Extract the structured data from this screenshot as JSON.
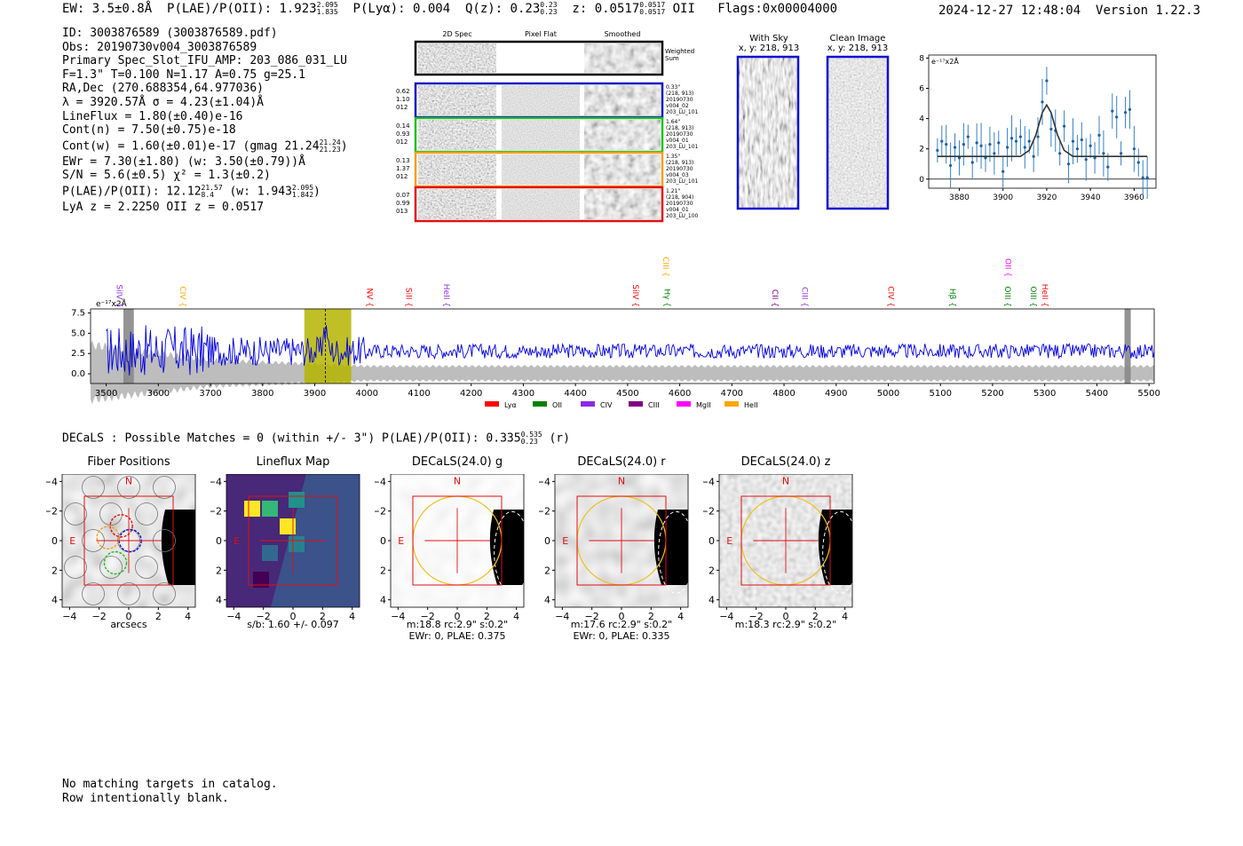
{
  "header": {
    "ew": "EW: 3.5±0.8Å",
    "plae_label": "P(LAE)/P(OII): 1.923",
    "plae_hi": "2.095",
    "plae_lo": "1.835",
    "plya": "P(Lyα): 0.004",
    "qz_label": "Q(z): 0.23",
    "qz_hi": "0.23",
    "qz_lo": "0.23",
    "z_label": "z: 0.0517",
    "z_hi": "0.0517",
    "z_lo": "0.0517",
    "z_line": "OII",
    "flags": "Flags:0x00004000",
    "datetime": "2024-12-27 12:48:04",
    "version": "Version 1.22.3"
  },
  "info": {
    "id": "ID: 3003876589 (3003876589.pdf)",
    "obs": "Obs: 20190730v004_3003876589",
    "slot": "Primary Spec_Slot_IFU_AMP: 203_086_031_LU",
    "params": "F=1.3\"  T=0.100  N=1.17  A=0.75  g=25.1",
    "radec": "RA,Dec (270.688354,64.977036)",
    "lambda": "λ = 3920.57Å  σ = 4.23(±1.04)Å",
    "lineflux": "LineFlux = 1.80(±0.40)e-16",
    "contn": "Cont(n) = 7.50(±0.75)e-18",
    "contw": "Cont(w) = 1.60(±0.01)e-17 (gmag 21.24",
    "contw_hi": "21.24",
    "contw_lo": "21.23",
    "contw_end": ")",
    "ewr": "EWr = 7.30(±1.80) (w: 3.50(±0.79))Å",
    "sn": "S/N = 5.6(±0.5)  χ² = 1.3(±0.2)",
    "plae": "P(LAE)/P(OII): 12.12",
    "plae_hi": "21.57",
    "plae_lo": "8.4",
    "plae_w": "(w: 1.943",
    "plae_w_hi": "2.095",
    "plae_w_lo": "1.842",
    "plae_w_end": ")",
    "lya_oii": "LyA z = 2.2250   OII z = 0.0517"
  },
  "cutouts": {
    "col_labels": [
      "2D Spec",
      "Pixel Flat",
      "Smoothed"
    ],
    "weighted_sum": "Weighted Sum",
    "rows": [
      {
        "left": [
          "0.62",
          "1.10",
          "012"
        ],
        "right": [
          "0.33\"",
          "(218, 913)",
          "20190730",
          "v004_02",
          "203_LU_101"
        ],
        "color": "#1010c0"
      },
      {
        "left": [
          "0.14",
          "0.93",
          "012"
        ],
        "right": [
          "1.64\"",
          "(218, 913)",
          "20190730",
          "v004_01",
          "203_LU_101"
        ],
        "color": "#20c020"
      },
      {
        "left": [
          "0.13",
          "1.37",
          "012"
        ],
        "right": [
          "1.35\"",
          "(218, 913)",
          "20190730",
          "v004_03",
          "203_LU_101"
        ],
        "color": "#f0a020"
      },
      {
        "left": [
          "0.07",
          "0.99",
          "013"
        ],
        "right": [
          "1.21\"",
          "(218, 904)",
          "20190730",
          "v004_01",
          "203_LU_100"
        ],
        "color": "#e01010"
      }
    ]
  },
  "sky_panels": {
    "with_sky": "With Sky",
    "clean": "Clean Image",
    "coords": "x, y: 218, 913"
  },
  "fit_plot": {
    "unit": "e⁻¹⁷x2Å",
    "chart_data": {
      "type": "scatter",
      "x_ticks": [
        3880,
        3900,
        3920,
        3940,
        3960
      ],
      "y_ticks": [
        0,
        2,
        4,
        6,
        8
      ],
      "xlim": [
        3866,
        3970
      ],
      "ylim": [
        -0.6,
        8.2
      ],
      "points_x": [
        3870,
        3872,
        3874,
        3876,
        3878,
        3880,
        3882,
        3884,
        3886,
        3888,
        3890,
        3892,
        3894,
        3896,
        3898,
        3900,
        3902,
        3904,
        3906,
        3908,
        3910,
        3912,
        3914,
        3916,
        3918,
        3920,
        3922,
        3924,
        3926,
        3928,
        3930,
        3932,
        3934,
        3936,
        3938,
        3940,
        3942,
        3944,
        3946,
        3948,
        3950,
        3952,
        3954,
        3956,
        3958,
        3960,
        3962,
        3964,
        3966
      ],
      "points_y": [
        1.9,
        2.5,
        2.3,
        0.9,
        2.1,
        1.4,
        2.3,
        2.8,
        1.1,
        2.4,
        2.2,
        1.4,
        2.3,
        1.7,
        2.4,
        0.5,
        2.1,
        2.7,
        2.5,
        2.8,
        2.1,
        2.5,
        1.5,
        2.8,
        5.1,
        6.5,
        3.3,
        3.2,
        1.7,
        3.5,
        1.0,
        2.5,
        2.0,
        2.6,
        1.3,
        2.2,
        1.4,
        2.9,
        1.7,
        0.8,
        4.5,
        4.1,
        1.7,
        4.4,
        4.6,
        2.0,
        1.1,
        0.1,
        0.1
      ],
      "fit_x": [
        3870,
        3908,
        3912,
        3915,
        3918,
        3920,
        3922,
        3925,
        3928,
        3932,
        3966
      ],
      "fit_y": [
        1.5,
        1.5,
        1.9,
        2.9,
        4.4,
        4.9,
        4.4,
        2.9,
        1.9,
        1.5,
        1.5
      ]
    }
  },
  "spectrum": {
    "unit": "e⁻¹⁷x2Å",
    "legend": [
      {
        "label": "Lyα",
        "color": "#ff0000"
      },
      {
        "label": "OII",
        "color": "#008000"
      },
      {
        "label": "CIV",
        "color": "#8a2be2"
      },
      {
        "label": "CIII",
        "color": "#800080"
      },
      {
        "label": "MgII",
        "color": "#ff00ff"
      },
      {
        "label": "HeII",
        "color": "#ffa500"
      }
    ],
    "chart_data": {
      "type": "line",
      "xlim": [
        3470,
        5510
      ],
      "ylim": [
        -1.2,
        8.0
      ],
      "x_ticks": [
        3500,
        3600,
        3700,
        3800,
        3900,
        4000,
        4100,
        4200,
        4300,
        4400,
        4500,
        4600,
        4700,
        4800,
        4900,
        5000,
        5100,
        5200,
        5300,
        5400,
        5500
      ],
      "y_ticks": [
        "0.0",
        "2.5",
        "5.0",
        "7.5"
      ],
      "highlight_range": [
        3880,
        3970
      ],
      "line_center": 3920.57,
      "masked_ranges": [
        [
          3533,
          3553
        ],
        [
          5453,
          5465
        ]
      ],
      "line_markers": [
        {
          "label": "SiIV",
          "wave": 3515,
          "color": "#8a2be2",
          "row": 2
        },
        {
          "label": "CIV",
          "wave": 3637,
          "color": "#ffa500",
          "row": 2
        },
        {
          "label": "NV",
          "wave": 3995,
          "color": "#ff0000",
          "row": 2
        },
        {
          "label": "SiII",
          "wave": 4070,
          "color": "#ff0000",
          "row": 2
        },
        {
          "label": "HeII",
          "wave": 4143,
          "color": "#8a2be2",
          "row": 2
        },
        {
          "label": "SiIV",
          "wave": 4505,
          "color": "#ff0000",
          "row": 2
        },
        {
          "label": "CIII",
          "wave": 4563,
          "color": "#ffa500",
          "row": 0
        },
        {
          "label": "Hγ",
          "wave": 4566,
          "color": "#008000",
          "row": 2
        },
        {
          "label": "CII",
          "wave": 4773,
          "color": "#800080",
          "row": 2
        },
        {
          "label": "CIII",
          "wave": 4830,
          "color": "#8a2be2",
          "row": 2
        },
        {
          "label": "CIV",
          "wave": 4995,
          "color": "#ff0000",
          "row": 2
        },
        {
          "label": "Hβ",
          "wave": 5113,
          "color": "#008000",
          "row": 2
        },
        {
          "label": "OII",
          "wave": 5220,
          "color": "#ff00ff",
          "row": 0
        },
        {
          "label": "OIII",
          "wave": 5219,
          "color": "#008000",
          "row": 2
        },
        {
          "label": "OIII",
          "wave": 5268,
          "color": "#008000",
          "row": 2
        },
        {
          "label": "HeII",
          "wave": 5290,
          "color": "#ff0000",
          "row": 2
        }
      ]
    }
  },
  "decals": {
    "summary": "DECaLS : Possible Matches = 0 (within +/- 3\")  P(LAE)/P(OII): 0.335",
    "summary_hi": "0.535",
    "summary_lo": "0.23",
    "summary_end": "(r)",
    "axis_ticks": [
      "−4",
      "−2",
      "0",
      "2",
      "4"
    ],
    "panels": [
      {
        "title": "Fiber Positions",
        "sub1": "arcsecs",
        "sub2": "",
        "n_label": "N",
        "e_label": "E"
      },
      {
        "title": "Lineflux Map",
        "sub1": "s/b: 1.60 +/- 0.097",
        "sub2": "",
        "n_label": "",
        "e_label": "E"
      },
      {
        "title": "DECaLS(24.0) g",
        "sub1": "m:18.8 rc:2.9\"  s:0.2\"",
        "sub2": "EWr: 0, PLAE: 0.375",
        "n_label": "N",
        "e_label": "E"
      },
      {
        "title": "DECaLS(24.0) r",
        "sub1": "m:17.6 rc:2.9\"  s:0.2\"",
        "sub2": "EWr: 0, PLAE: 0.335",
        "n_label": "N",
        "e_label": "E"
      },
      {
        "title": "DECaLS(24.0) z",
        "sub1": "m:18.3 rc:2.9\"  s:0.2\"",
        "sub2": "",
        "n_label": "N",
        "e_label": "E"
      }
    ]
  },
  "footer": {
    "line1": "No matching targets in catalog.",
    "line2": "Row intentionally blank."
  }
}
